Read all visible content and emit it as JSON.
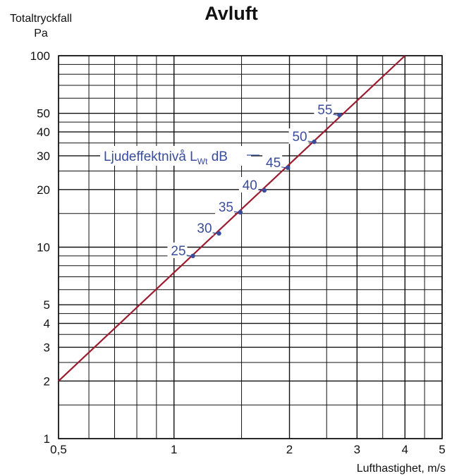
{
  "chart_data": {
    "type": "line",
    "title": "Avluft",
    "ylabel_line1": "Totaltryckfall",
    "ylabel_line2": "Pa",
    "xlabel": "Lufthastighet, m/s",
    "xscale": "log",
    "yscale": "log",
    "xlim": [
      0.5,
      5
    ],
    "ylim": [
      1,
      100
    ],
    "grid": true,
    "x_ticks": [
      {
        "value": 0.5,
        "label": "0,5"
      },
      {
        "value": 1,
        "label": "1"
      },
      {
        "value": 2,
        "label": "2"
      },
      {
        "value": 3,
        "label": "3"
      },
      {
        "value": 4,
        "label": "4"
      },
      {
        "value": 5,
        "label": "5"
      }
    ],
    "y_ticks": [
      {
        "value": 1,
        "label": "1"
      },
      {
        "value": 2,
        "label": "2"
      },
      {
        "value": 3,
        "label": "3"
      },
      {
        "value": 4,
        "label": "4"
      },
      {
        "value": 5,
        "label": "5"
      },
      {
        "value": 10,
        "label": "10"
      },
      {
        "value": 20,
        "label": "20"
      },
      {
        "value": 30,
        "label": "30"
      },
      {
        "value": 40,
        "label": "40"
      },
      {
        "value": 50,
        "label": "50"
      },
      {
        "value": 100,
        "label": "100"
      }
    ],
    "series": [
      {
        "x": [
          0.5,
          4.0
        ],
        "y": [
          2,
          100
        ],
        "color": "#9b1c2e"
      }
    ],
    "annotation": {
      "text": "Ljudeffektnivå L",
      "sub": "Wt",
      "suffix": " dB"
    },
    "sound_levels": [
      {
        "label": "25",
        "x": 1.12,
        "y": 9.0
      },
      {
        "label": "30",
        "x": 1.31,
        "y": 11.8
      },
      {
        "label": "35",
        "x": 1.49,
        "y": 15.2
      },
      {
        "label": "40",
        "x": 1.72,
        "y": 19.8
      },
      {
        "label": "45",
        "x": 1.98,
        "y": 26.0
      },
      {
        "label": "50",
        "x": 2.32,
        "y": 35.5
      },
      {
        "label": "55",
        "x": 2.7,
        "y": 49.0
      }
    ],
    "colors": {
      "line": "#9b1c2e",
      "points": "#3a4d9c",
      "grid": "#111111"
    }
  }
}
